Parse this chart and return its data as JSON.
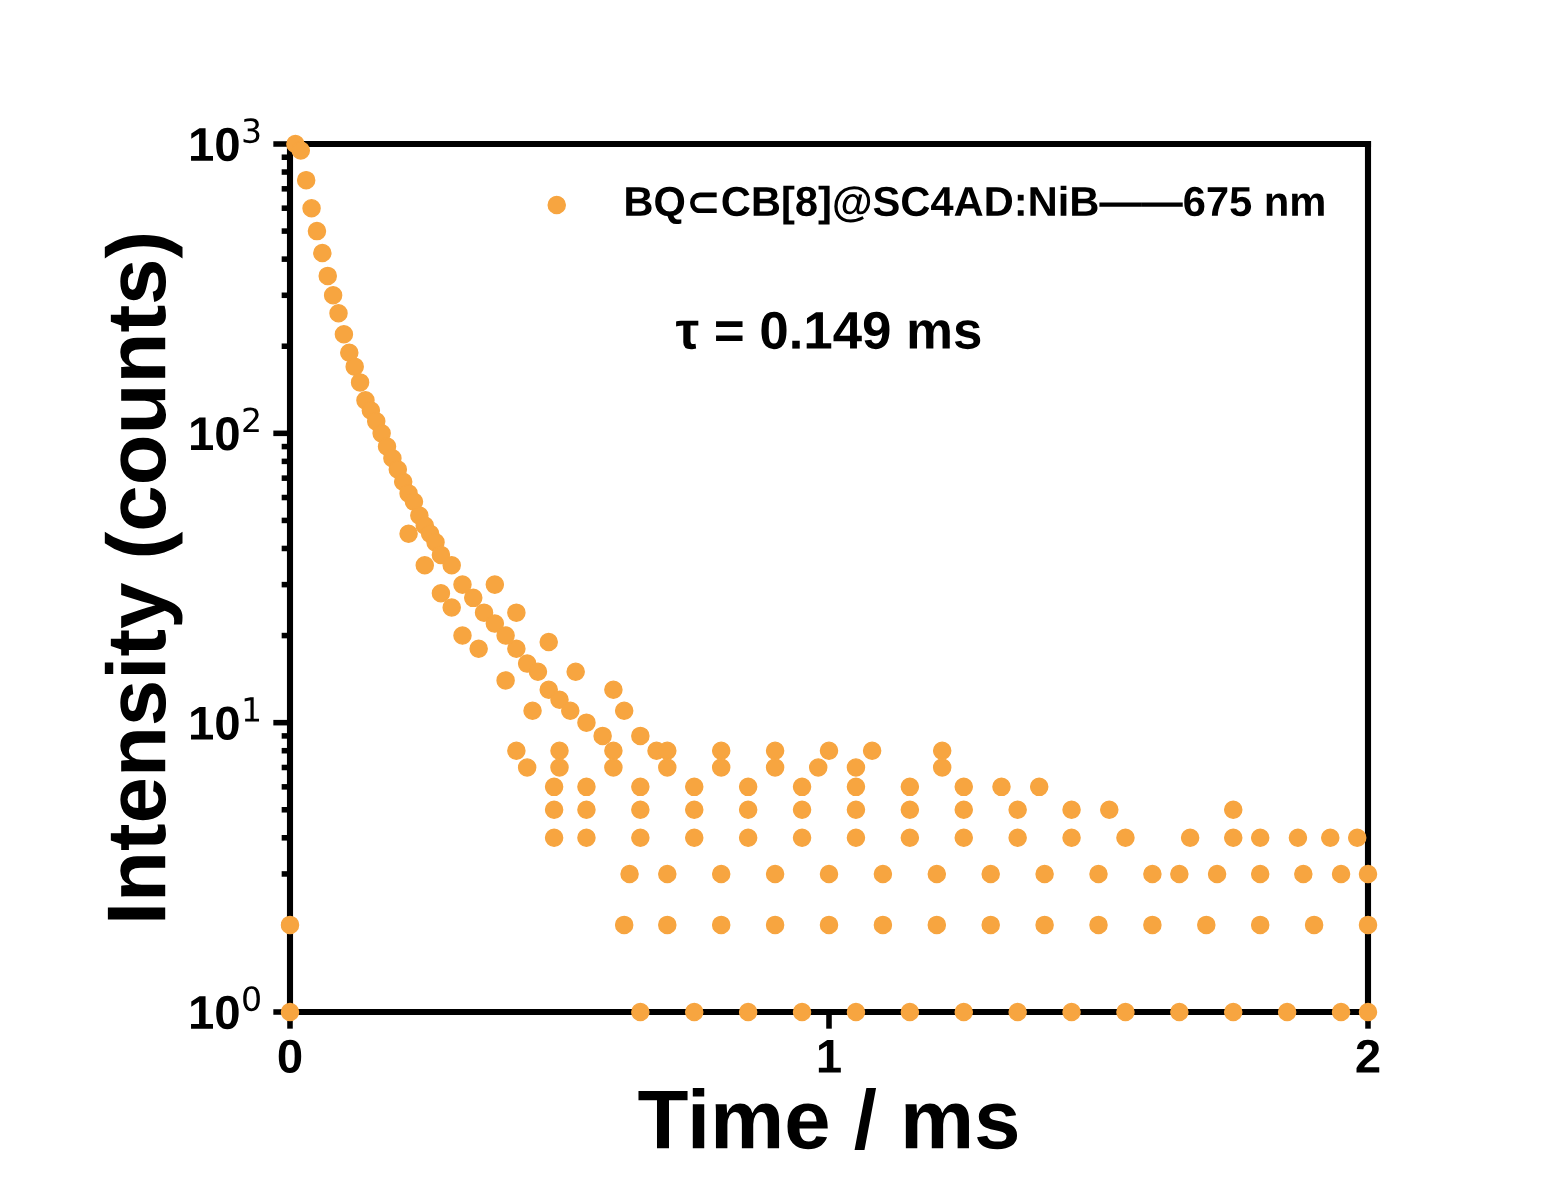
{
  "chart_data": {
    "type": "scatter",
    "xlabel": "Time / ms",
    "ylabel": "Intensity (counts)",
    "log": "y",
    "xlim": [
      0,
      2
    ],
    "xticks": [
      0,
      1,
      2
    ],
    "ylim": [
      1,
      1000
    ],
    "yticks": [
      {
        "value": 1,
        "label": "10$^{0}$"
      },
      {
        "value": 10,
        "label": "10$^{1}$"
      },
      {
        "value": 100,
        "label": "10$^{2}$"
      },
      {
        "value": 1000,
        "label": "10$^{3}$"
      }
    ],
    "grid": false,
    "legend": "top right",
    "marker": "circle",
    "annotations": [
      "τ = 0.149 ms"
    ],
    "series": [
      {
        "name": "BQ⊂CB[8]@SC4AD:NiB——675 nm",
        "color": "#f7a540",
        "x": [
          0.01,
          0.02,
          0.03,
          0.04,
          0.05,
          0.06,
          0.07,
          0.08,
          0.09,
          0.1,
          0.11,
          0.12,
          0.13,
          0.14,
          0.15,
          0.16,
          0.17,
          0.18,
          0.19,
          0.2,
          0.21,
          0.22,
          0.23,
          0.24,
          0.25,
          0.26,
          0.27,
          0.28,
          0.3,
          0.32,
          0.34,
          0.36,
          0.38,
          0.4,
          0.42,
          0.44,
          0.46,
          0.48,
          0.5,
          0.52,
          0.55,
          0.58,
          0.62,
          0.65,
          0.68,
          0.32,
          0.28,
          0.25,
          0.22,
          0.35,
          0.4,
          0.45,
          0.38,
          0.42,
          0.48,
          0.53,
          0.6,
          0.3,
          0,
          0.65,
          0.75,
          0.85,
          0.95,
          1.05,
          1.15,
          1.25,
          1.35,
          1.45,
          1.55,
          1.65,
          1.75,
          1.85,
          1.95,
          2.0,
          0,
          0.62,
          0.7,
          0.8,
          0.9,
          1.0,
          1.1,
          1.2,
          1.3,
          1.4,
          1.5,
          1.6,
          1.7,
          1.8,
          1.9,
          2.0,
          0.63,
          0.7,
          0.8,
          0.9,
          1.0,
          1.1,
          1.2,
          1.3,
          1.4,
          1.5,
          1.6,
          1.65,
          1.72,
          1.8,
          1.88,
          1.95,
          2.0,
          0.49,
          0.55,
          0.65,
          0.75,
          0.85,
          0.95,
          1.05,
          1.15,
          1.25,
          1.35,
          1.45,
          1.55,
          1.67,
          1.75,
          1.8,
          1.87,
          1.93,
          1.98,
          0.49,
          0.55,
          0.65,
          0.75,
          0.85,
          0.95,
          1.05,
          1.15,
          1.25,
          1.35,
          1.45,
          1.52,
          1.75,
          0.49,
          0.55,
          0.65,
          0.75,
          0.85,
          0.95,
          1.05,
          1.15,
          1.25,
          1.32,
          1.39,
          0.44,
          0.5,
          0.6,
          0.7,
          0.8,
          0.9,
          0.98,
          1.05,
          1.21,
          0.42,
          0.5,
          0.6,
          0.7,
          0.8,
          0.9,
          1.0,
          1.08,
          1.21
        ],
        "values": [
          1000,
          950,
          750,
          600,
          500,
          420,
          350,
          300,
          260,
          220,
          190,
          170,
          150,
          130,
          120,
          110,
          100,
          90,
          82,
          75,
          68,
          62,
          58,
          52,
          48,
          45,
          42,
          38,
          35,
          30,
          27,
          24,
          22,
          20,
          18,
          16,
          15,
          13,
          12,
          11,
          10,
          9,
          11,
          9,
          8,
          20,
          28,
          35,
          45,
          18,
          14,
          11,
          30,
          24,
          19,
          15,
          13,
          25,
          1,
          1,
          1,
          1,
          1,
          1,
          1,
          1,
          1,
          1,
          1,
          1,
          1,
          1,
          1,
          1,
          2,
          2,
          2,
          2,
          2,
          2,
          2,
          2,
          2,
          2,
          2,
          2,
          2,
          2,
          2,
          2,
          3,
          3,
          3,
          3,
          3,
          3,
          3,
          3,
          3,
          3,
          3,
          3,
          3,
          3,
          3,
          3,
          3,
          4,
          4,
          4,
          4,
          4,
          4,
          4,
          4,
          4,
          4,
          4,
          4,
          4,
          4,
          4,
          4,
          4,
          4,
          5,
          5,
          5,
          5,
          5,
          5,
          5,
          5,
          5,
          5,
          5,
          5,
          5,
          6,
          6,
          6,
          6,
          6,
          6,
          6,
          6,
          6,
          6,
          6,
          7,
          7,
          7,
          7,
          7,
          7,
          7,
          7,
          7,
          8,
          8,
          8,
          8,
          8,
          8,
          8,
          8,
          8
        ]
      }
    ]
  }
}
